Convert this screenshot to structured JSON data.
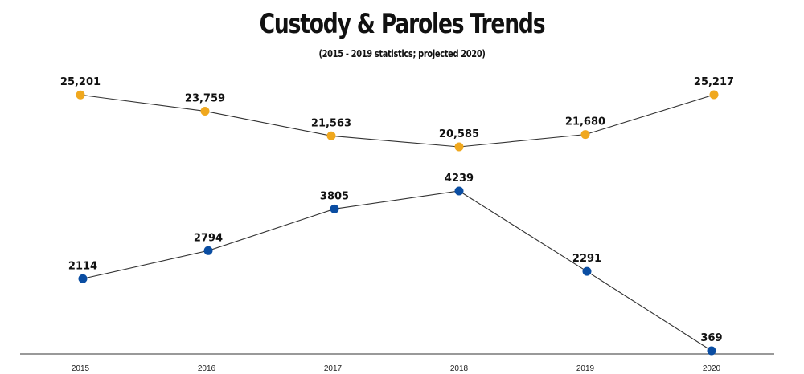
{
  "chart_data": {
    "type": "line",
    "title": "Custody & Paroles Trends",
    "subtitle": "(2015 - 2019 statistics; projected 2020)",
    "categories": [
      "2015",
      "2016",
      "2017",
      "2018",
      "2019",
      "2020"
    ],
    "series": [
      {
        "values": [
          25201,
          23759,
          21563,
          20585,
          21680,
          25217
        ],
        "labels": [
          "25,201",
          "23,759",
          "21,563",
          "20,585",
          "21,680",
          "25,217"
        ],
        "color": "#f0a81e"
      },
      {
        "values": [
          2114,
          2794,
          3805,
          4239,
          2291,
          369
        ],
        "labels": [
          "2114",
          "2794",
          "3805",
          "4239",
          "2291",
          "369"
        ],
        "color": "#0a4da2"
      }
    ],
    "grid": false,
    "legend": "none"
  }
}
